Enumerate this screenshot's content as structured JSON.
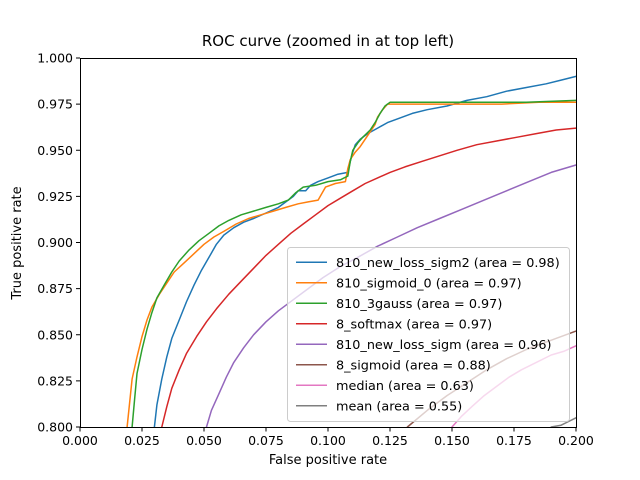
{
  "chart_data": {
    "type": "line",
    "title": "ROC curve (zoomed in at top left)",
    "xlabel": "False positive rate",
    "ylabel": "True positive rate",
    "xlim": [
      0.0,
      0.2
    ],
    "ylim": [
      0.8,
      1.0
    ],
    "grid": false,
    "x_ticks": [
      0.0,
      0.025,
      0.05,
      0.075,
      0.1,
      0.125,
      0.15,
      0.175,
      0.2
    ],
    "x_tick_labels": [
      "0.000",
      "0.025",
      "0.050",
      "0.075",
      "0.100",
      "0.125",
      "0.150",
      "0.175",
      "0.200"
    ],
    "y_ticks": [
      0.8,
      0.825,
      0.85,
      0.875,
      0.9,
      0.925,
      0.95,
      0.975,
      1.0
    ],
    "y_tick_labels": [
      "0.800",
      "0.825",
      "0.850",
      "0.875",
      "0.900",
      "0.925",
      "0.950",
      "0.975",
      "1.000"
    ],
    "legend": {
      "position": "lower right",
      "frame": true,
      "frame_color": "#cccccc"
    },
    "series": [
      {
        "name": "810_new_loss_sigm2",
        "legend_label": "810_new_loss_sigm2 (area = 0.98)",
        "area": 0.98,
        "color": "#1f77b4",
        "points": [
          [
            0.03,
            0.8
          ],
          [
            0.031,
            0.812
          ],
          [
            0.033,
            0.826
          ],
          [
            0.035,
            0.838
          ],
          [
            0.037,
            0.848
          ],
          [
            0.04,
            0.858
          ],
          [
            0.043,
            0.868
          ],
          [
            0.046,
            0.877
          ],
          [
            0.049,
            0.885
          ],
          [
            0.052,
            0.892
          ],
          [
            0.055,
            0.899
          ],
          [
            0.058,
            0.904
          ],
          [
            0.062,
            0.908
          ],
          [
            0.066,
            0.911
          ],
          [
            0.07,
            0.913
          ],
          [
            0.075,
            0.916
          ],
          [
            0.08,
            0.919
          ],
          [
            0.083,
            0.922
          ],
          [
            0.086,
            0.925
          ],
          [
            0.088,
            0.928
          ],
          [
            0.091,
            0.928
          ],
          [
            0.093,
            0.931
          ],
          [
            0.096,
            0.933
          ],
          [
            0.1,
            0.935
          ],
          [
            0.104,
            0.937
          ],
          [
            0.108,
            0.938
          ],
          [
            0.109,
            0.944
          ],
          [
            0.11,
            0.949
          ],
          [
            0.111,
            0.953
          ],
          [
            0.113,
            0.956
          ],
          [
            0.116,
            0.959
          ],
          [
            0.12,
            0.962
          ],
          [
            0.124,
            0.965
          ],
          [
            0.128,
            0.967
          ],
          [
            0.134,
            0.97
          ],
          [
            0.14,
            0.972
          ],
          [
            0.148,
            0.974
          ],
          [
            0.156,
            0.977
          ],
          [
            0.164,
            0.979
          ],
          [
            0.172,
            0.982
          ],
          [
            0.18,
            0.984
          ],
          [
            0.188,
            0.986
          ],
          [
            0.194,
            0.988
          ],
          [
            0.2,
            0.99
          ]
        ]
      },
      {
        "name": "810_sigmoid_0",
        "legend_label": "810_sigmoid_0 (area = 0.97)",
        "area": 0.97,
        "color": "#ff7f0e",
        "points": [
          [
            0.019,
            0.8
          ],
          [
            0.02,
            0.813
          ],
          [
            0.021,
            0.826
          ],
          [
            0.023,
            0.838
          ],
          [
            0.025,
            0.849
          ],
          [
            0.027,
            0.858
          ],
          [
            0.029,
            0.865
          ],
          [
            0.032,
            0.872
          ],
          [
            0.035,
            0.878
          ],
          [
            0.038,
            0.884
          ],
          [
            0.042,
            0.889
          ],
          [
            0.046,
            0.894
          ],
          [
            0.05,
            0.899
          ],
          [
            0.054,
            0.903
          ],
          [
            0.058,
            0.906
          ],
          [
            0.063,
            0.91
          ],
          [
            0.068,
            0.913
          ],
          [
            0.073,
            0.915
          ],
          [
            0.078,
            0.917
          ],
          [
            0.083,
            0.919
          ],
          [
            0.088,
            0.921
          ],
          [
            0.092,
            0.922
          ],
          [
            0.096,
            0.923
          ],
          [
            0.099,
            0.93
          ],
          [
            0.103,
            0.932
          ],
          [
            0.107,
            0.933
          ],
          [
            0.108,
            0.94
          ],
          [
            0.109,
            0.945
          ],
          [
            0.111,
            0.949
          ],
          [
            0.113,
            0.952
          ],
          [
            0.115,
            0.956
          ],
          [
            0.117,
            0.96
          ],
          [
            0.119,
            0.964
          ],
          [
            0.12,
            0.968
          ],
          [
            0.122,
            0.972
          ],
          [
            0.124,
            0.975
          ],
          [
            0.13,
            0.975
          ],
          [
            0.14,
            0.975
          ],
          [
            0.155,
            0.975
          ],
          [
            0.17,
            0.975
          ],
          [
            0.185,
            0.976
          ],
          [
            0.2,
            0.976
          ]
        ]
      },
      {
        "name": "810_3gauss",
        "legend_label": "810_3gauss (area = 0.97)",
        "area": 0.97,
        "color": "#2ca02c",
        "points": [
          [
            0.021,
            0.8
          ],
          [
            0.022,
            0.815
          ],
          [
            0.023,
            0.829
          ],
          [
            0.025,
            0.842
          ],
          [
            0.027,
            0.853
          ],
          [
            0.029,
            0.862
          ],
          [
            0.031,
            0.87
          ],
          [
            0.034,
            0.877
          ],
          [
            0.037,
            0.884
          ],
          [
            0.04,
            0.89
          ],
          [
            0.044,
            0.896
          ],
          [
            0.048,
            0.901
          ],
          [
            0.052,
            0.905
          ],
          [
            0.056,
            0.909
          ],
          [
            0.06,
            0.912
          ],
          [
            0.065,
            0.915
          ],
          [
            0.07,
            0.917
          ],
          [
            0.075,
            0.919
          ],
          [
            0.08,
            0.921
          ],
          [
            0.084,
            0.923
          ],
          [
            0.087,
            0.927
          ],
          [
            0.09,
            0.93
          ],
          [
            0.095,
            0.931
          ],
          [
            0.1,
            0.933
          ],
          [
            0.105,
            0.934
          ],
          [
            0.108,
            0.936
          ],
          [
            0.109,
            0.944
          ],
          [
            0.11,
            0.95
          ],
          [
            0.112,
            0.954
          ],
          [
            0.114,
            0.957
          ],
          [
            0.117,
            0.961
          ],
          [
            0.119,
            0.965
          ],
          [
            0.121,
            0.97
          ],
          [
            0.123,
            0.974
          ],
          [
            0.125,
            0.976
          ],
          [
            0.135,
            0.976
          ],
          [
            0.15,
            0.976
          ],
          [
            0.165,
            0.976
          ],
          [
            0.18,
            0.976
          ],
          [
            0.2,
            0.977
          ]
        ]
      },
      {
        "name": "8_softmax",
        "legend_label": "8_softmax (area = 0.97)",
        "area": 0.97,
        "color": "#d62728",
        "points": [
          [
            0.033,
            0.8
          ],
          [
            0.035,
            0.811
          ],
          [
            0.037,
            0.821
          ],
          [
            0.04,
            0.831
          ],
          [
            0.043,
            0.84
          ],
          [
            0.047,
            0.849
          ],
          [
            0.051,
            0.857
          ],
          [
            0.055,
            0.864
          ],
          [
            0.06,
            0.872
          ],
          [
            0.065,
            0.879
          ],
          [
            0.07,
            0.886
          ],
          [
            0.075,
            0.893
          ],
          [
            0.08,
            0.899
          ],
          [
            0.085,
            0.905
          ],
          [
            0.09,
            0.91
          ],
          [
            0.095,
            0.915
          ],
          [
            0.1,
            0.92
          ],
          [
            0.105,
            0.924
          ],
          [
            0.11,
            0.928
          ],
          [
            0.115,
            0.932
          ],
          [
            0.12,
            0.935
          ],
          [
            0.125,
            0.938
          ],
          [
            0.131,
            0.941
          ],
          [
            0.138,
            0.944
          ],
          [
            0.145,
            0.947
          ],
          [
            0.152,
            0.95
          ],
          [
            0.16,
            0.953
          ],
          [
            0.168,
            0.955
          ],
          [
            0.176,
            0.957
          ],
          [
            0.184,
            0.959
          ],
          [
            0.192,
            0.961
          ],
          [
            0.2,
            0.962
          ]
        ]
      },
      {
        "name": "810_new_loss_sigm",
        "legend_label": "810_new_loss_sigm (area = 0.96)",
        "area": 0.96,
        "color": "#9467bd",
        "points": [
          [
            0.051,
            0.8
          ],
          [
            0.053,
            0.809
          ],
          [
            0.056,
            0.818
          ],
          [
            0.059,
            0.827
          ],
          [
            0.062,
            0.835
          ],
          [
            0.066,
            0.843
          ],
          [
            0.07,
            0.85
          ],
          [
            0.075,
            0.857
          ],
          [
            0.08,
            0.863
          ],
          [
            0.086,
            0.869
          ],
          [
            0.092,
            0.875
          ],
          [
            0.098,
            0.881
          ],
          [
            0.105,
            0.887
          ],
          [
            0.112,
            0.892
          ],
          [
            0.12,
            0.898
          ],
          [
            0.128,
            0.903
          ],
          [
            0.136,
            0.908
          ],
          [
            0.145,
            0.913
          ],
          [
            0.154,
            0.918
          ],
          [
            0.163,
            0.923
          ],
          [
            0.172,
            0.928
          ],
          [
            0.181,
            0.933
          ],
          [
            0.19,
            0.938
          ],
          [
            0.2,
            0.942
          ]
        ]
      },
      {
        "name": "8_sigmoid",
        "legend_label": "8_sigmoid (area = 0.88)",
        "area": 0.88,
        "color": "#8c564b",
        "points": [
          [
            0.132,
            0.8
          ],
          [
            0.14,
            0.809
          ],
          [
            0.148,
            0.817
          ],
          [
            0.156,
            0.824
          ],
          [
            0.164,
            0.831
          ],
          [
            0.172,
            0.837
          ],
          [
            0.18,
            0.842
          ],
          [
            0.188,
            0.846
          ],
          [
            0.194,
            0.849
          ],
          [
            0.2,
            0.852
          ]
        ]
      },
      {
        "name": "median",
        "legend_label": "median (area = 0.63)",
        "area": 0.63,
        "color": "#e377c2",
        "points": [
          [
            0.15,
            0.8
          ],
          [
            0.154,
            0.806
          ],
          [
            0.158,
            0.811
          ],
          [
            0.163,
            0.817
          ],
          [
            0.168,
            0.822
          ],
          [
            0.173,
            0.827
          ],
          [
            0.178,
            0.831
          ],
          [
            0.184,
            0.835
          ],
          [
            0.19,
            0.839
          ],
          [
            0.195,
            0.841
          ],
          [
            0.2,
            0.844
          ]
        ]
      },
      {
        "name": "mean",
        "legend_label": "mean (area = 0.55)",
        "area": 0.55,
        "color": "#7f7f7f",
        "points": [
          [
            0.19,
            0.8
          ],
          [
            0.194,
            0.801
          ],
          [
            0.197,
            0.803
          ],
          [
            0.2,
            0.805
          ]
        ]
      }
    ]
  }
}
